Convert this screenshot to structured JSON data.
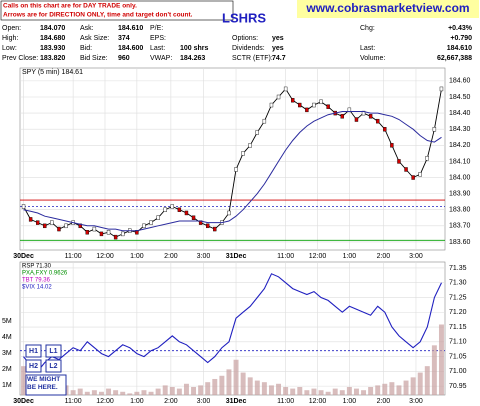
{
  "header": {
    "notice": [
      "Calls on this chart are for DAY TRADE only.",
      "Arrows are for DIRECTION ONLY, time and target don't count."
    ],
    "symbol": "LSHRS",
    "site": "www.cobrasmarketview.com",
    "quote": [
      [
        "Open:",
        "184.070",
        "Ask:",
        "184.610",
        "P/E:",
        "",
        "",
        "",
        "Chg:",
        "+0.43%"
      ],
      [
        "High:",
        "184.680",
        "Ask Size:",
        "374",
        "EPS:",
        "",
        "Options:",
        "yes",
        "",
        "+0.790"
      ],
      [
        "Low:",
        "183.930",
        "Bid:",
        "184.600",
        "Last:",
        "100 shrs",
        "Dividends:",
        "yes",
        "Last:",
        "184.610"
      ],
      [
        "Prev Close:",
        "183.820",
        "Bid Size:",
        "960",
        "VWAP:",
        "184.263",
        "SCTR (ETF):",
        "74.7",
        "Volume:",
        "62,667,388"
      ]
    ]
  },
  "annotations": {
    "buttons": [
      "H1",
      "L1",
      "H2",
      "L2"
    ],
    "note": "WE MIGHT BE HERE."
  },
  "chart_data": [
    {
      "type": "candle-line",
      "label": "SPY (5 min) 184.61",
      "xlim": [
        -0.5,
        59.5
      ],
      "x": [
        0,
        1,
        2,
        3,
        4,
        5,
        6,
        7,
        8,
        9,
        10,
        11,
        12,
        13,
        14,
        15,
        16,
        17,
        18,
        19,
        20,
        21,
        22,
        23,
        24,
        25,
        26,
        27,
        28,
        29,
        30,
        31,
        32,
        33,
        34,
        35,
        36,
        37,
        38,
        39,
        40,
        41,
        42,
        43,
        44,
        45,
        46,
        47,
        48,
        49,
        50,
        51,
        52,
        53,
        54,
        55,
        56,
        57,
        58,
        59
      ],
      "xticks": [
        {
          "value": 0,
          "label": "30Dec"
        },
        {
          "value": 7,
          "label": "11:00"
        },
        {
          "value": 11.5,
          "label": "12:00"
        },
        {
          "value": 16,
          "label": "1:00"
        },
        {
          "value": 20.8,
          "label": "2:00"
        },
        {
          "value": 25.4,
          "label": "3:00"
        },
        {
          "value": 30,
          "label": "31Dec"
        },
        {
          "value": 37,
          "label": "11:00"
        },
        {
          "value": 41.5,
          "label": "12:00"
        },
        {
          "value": 46,
          "label": "1:00"
        },
        {
          "value": 50.8,
          "label": "2:00"
        },
        {
          "value": 55.4,
          "label": "3:00"
        }
      ],
      "ylim": [
        183.55,
        184.68
      ],
      "yticks": [
        {
          "value": 183.6,
          "label": "183.60"
        },
        {
          "value": 183.7,
          "label": "183.70"
        },
        {
          "value": 183.8,
          "label": "183.80"
        },
        {
          "value": 183.9,
          "label": "183.90"
        },
        {
          "value": 184.0,
          "label": "184.00"
        },
        {
          "value": 184.1,
          "label": "184.10"
        },
        {
          "value": 184.2,
          "label": "184.20"
        },
        {
          "value": 184.3,
          "label": "184.30"
        },
        {
          "value": 184.4,
          "label": "184.40"
        },
        {
          "value": 184.5,
          "label": "184.50"
        },
        {
          "value": 184.6,
          "label": "184.60"
        }
      ],
      "series": [
        {
          "color": "#000000",
          "values": [
            183.82,
            183.74,
            183.72,
            183.7,
            183.72,
            183.68,
            183.7,
            183.72,
            183.7,
            183.66,
            183.68,
            183.65,
            183.66,
            183.63,
            183.65,
            183.67,
            183.66,
            183.7,
            183.72,
            183.75,
            183.8,
            183.82,
            183.8,
            183.78,
            183.75,
            183.72,
            183.7,
            183.68,
            183.72,
            183.78,
            184.05,
            184.15,
            184.2,
            184.28,
            184.35,
            184.45,
            184.5,
            184.55,
            184.48,
            184.45,
            184.42,
            184.45,
            184.47,
            184.44,
            184.4,
            184.38,
            184.42,
            184.36,
            184.4,
            184.38,
            184.35,
            184.3,
            184.2,
            184.1,
            184.05,
            184.0,
            184.02,
            184.12,
            184.3,
            184.55
          ]
        },
        {
          "color": "#2b2b9e",
          "values": [
            183.8,
            183.79,
            183.78,
            183.76,
            183.75,
            183.74,
            183.73,
            183.72,
            183.71,
            183.7,
            183.7,
            183.69,
            183.68,
            183.68,
            183.67,
            183.67,
            183.67,
            183.68,
            183.69,
            183.7,
            183.71,
            183.72,
            183.73,
            183.73,
            183.73,
            183.73,
            183.72,
            183.72,
            183.72,
            183.73,
            183.76,
            183.8,
            183.85,
            183.9,
            183.96,
            184.03,
            184.1,
            184.17,
            184.23,
            184.28,
            184.32,
            184.35,
            184.37,
            184.39,
            184.4,
            184.41,
            184.41,
            184.41,
            184.41,
            184.4,
            184.4,
            184.39,
            184.38,
            184.36,
            184.33,
            184.3,
            184.26,
            184.23,
            184.22,
            184.25
          ]
        }
      ],
      "levels": [
        {
          "value": 183.86,
          "color": "#d00000",
          "style": "solid"
        },
        {
          "value": 183.82,
          "color": "#2020c0",
          "style": "dashed"
        },
        {
          "value": 183.61,
          "color": "#00a000",
          "style": "solid"
        }
      ]
    },
    {
      "type": "rsp-volume",
      "legend": [
        "RSP 71.30",
        "PXA,FXY 0.9626",
        "TBT 79.36",
        "$VIX 14.02"
      ],
      "legend_colors": [
        "#000000",
        "#009000",
        "#c000c0",
        "#2020c0"
      ],
      "xlim": [
        -0.5,
        59.5
      ],
      "x": [
        0,
        1,
        2,
        3,
        4,
        5,
        6,
        7,
        8,
        9,
        10,
        11,
        12,
        13,
        14,
        15,
        16,
        17,
        18,
        19,
        20,
        21,
        22,
        23,
        24,
        25,
        26,
        27,
        28,
        29,
        30,
        31,
        32,
        33,
        34,
        35,
        36,
        37,
        38,
        39,
        40,
        41,
        42,
        43,
        44,
        45,
        46,
        47,
        48,
        49,
        50,
        51,
        52,
        53,
        54,
        55,
        56,
        57,
        58,
        59
      ],
      "xticks": [
        {
          "value": 0,
          "label": "30Dec"
        },
        {
          "value": 7,
          "label": "11:00"
        },
        {
          "value": 11.5,
          "label": "12:00"
        },
        {
          "value": 16,
          "label": "1:00"
        },
        {
          "value": 20.8,
          "label": "2:00"
        },
        {
          "value": 25.4,
          "label": "3:00"
        },
        {
          "value": 30,
          "label": "31Dec"
        },
        {
          "value": 37,
          "label": "11:00"
        },
        {
          "value": 41.5,
          "label": "12:00"
        },
        {
          "value": 46,
          "label": "1:00"
        },
        {
          "value": 50.8,
          "label": "2:00"
        },
        {
          "value": 55.4,
          "label": "3:00"
        }
      ],
      "y2lim": [
        70.92,
        71.37
      ],
      "y2ticks": [
        {
          "value": 70.95,
          "label": "70.95"
        },
        {
          "value": 71,
          "label": "71.00"
        },
        {
          "value": 71.05,
          "label": "71.05"
        },
        {
          "value": 71.1,
          "label": "71.10"
        },
        {
          "value": 71.15,
          "label": "71.15"
        },
        {
          "value": 71.2,
          "label": "71.20"
        },
        {
          "value": 71.25,
          "label": "71.25"
        },
        {
          "value": 71.3,
          "label": "71.30"
        },
        {
          "value": 71.35,
          "label": "71.35"
        }
      ],
      "ylim": [
        400000,
        8700000
      ],
      "yticks": [
        {
          "value": 1000000,
          "label": "1M"
        },
        {
          "value": 2000000,
          "label": "2M"
        },
        {
          "value": 3000000,
          "label": "3M"
        },
        {
          "value": 4000000,
          "label": "4M"
        },
        {
          "value": 5000000,
          "label": "5M"
        }
      ],
      "series": [
        {
          "name": "RSP",
          "color": "#2020c0",
          "axis": "y2",
          "values": [
            71.05,
            71.02,
            71.0,
            71.03,
            71.05,
            71.04,
            71.06,
            71.08,
            71.07,
            71.1,
            71.08,
            71.06,
            71.05,
            71.07,
            71.09,
            71.08,
            71.06,
            71.05,
            71.07,
            71.08,
            71.1,
            71.12,
            71.1,
            71.09,
            71.07,
            71.05,
            71.03,
            71.05,
            71.08,
            71.1,
            71.18,
            71.2,
            71.22,
            71.25,
            71.28,
            71.33,
            71.32,
            71.3,
            71.28,
            71.27,
            71.26,
            71.27,
            71.25,
            71.24,
            71.22,
            71.2,
            71.22,
            71.21,
            71.2,
            71.19,
            71.22,
            71.2,
            71.15,
            71.12,
            71.1,
            71.08,
            71.1,
            71.15,
            71.25,
            71.3
          ]
        },
        {
          "name": "Volume",
          "color": "#c8a0a0",
          "values": [
            2200000,
            1500000,
            1200000,
            1000000,
            900000,
            800000,
            1000000,
            700000,
            800000,
            600000,
            700000,
            600000,
            800000,
            700000,
            600000,
            500000,
            600000,
            700000,
            600000,
            800000,
            1000000,
            900000,
            800000,
            1100000,
            900000,
            1000000,
            1200000,
            1400000,
            1600000,
            2000000,
            2600000,
            1800000,
            1500000,
            1300000,
            1200000,
            1000000,
            1100000,
            900000,
            800000,
            900000,
            700000,
            800000,
            700000,
            600000,
            800000,
            700000,
            900000,
            800000,
            700000,
            900000,
            1000000,
            1100000,
            1200000,
            1000000,
            1300000,
            1500000,
            1800000,
            2200000,
            3500000,
            4800000
          ]
        }
      ],
      "levels": [
        {
          "value": 71.07,
          "color": "#2020c0",
          "style": "dashed"
        }
      ]
    }
  ]
}
